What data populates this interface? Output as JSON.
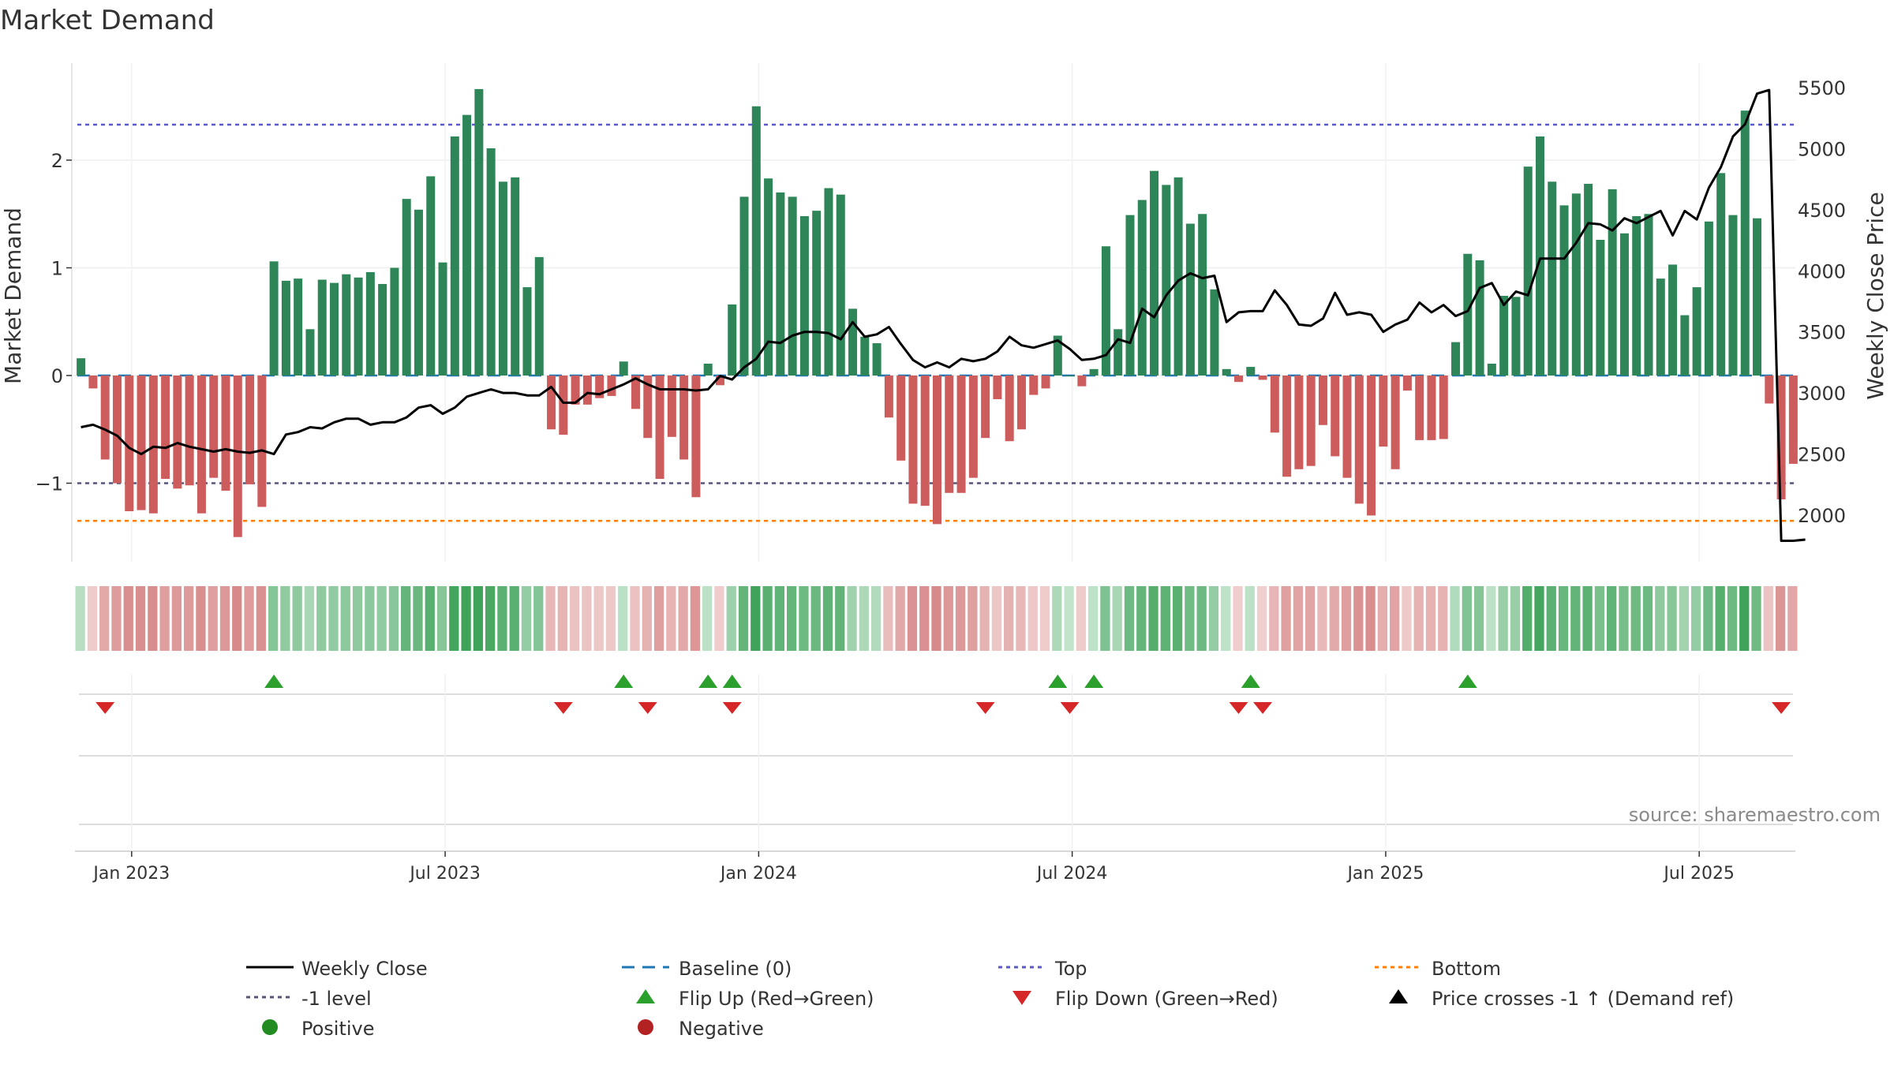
{
  "chart_data": {
    "type": "bar",
    "title": "Market Demand",
    "ylabel_left": "Market Demand",
    "ylabel_right": "Weekly Close Price",
    "source": "source: sharemaestro.com",
    "x_ticks": [
      "Jan 2023",
      "Jul 2023",
      "Jan 2024",
      "Jul 2024",
      "Jan 2025",
      "Jul 2025"
    ],
    "y_left_ticks": [
      "2",
      "1",
      "0",
      "−1"
    ],
    "y_left_tick_values": [
      2,
      1,
      0,
      -1
    ],
    "y_right_ticks": [
      "5500",
      "5000",
      "4500",
      "4000",
      "3500",
      "3000",
      "2500",
      "2000"
    ],
    "y_right_tick_values": [
      5500,
      5000,
      4500,
      4000,
      3500,
      3000,
      2500,
      2000
    ],
    "ylim_left": [
      -1.7,
      2.9
    ],
    "ylim_right": [
      1575,
      5680
    ],
    "levels": {
      "top": 2.33,
      "minus_one": -1.0,
      "bottom": -1.35,
      "baseline": 0
    },
    "colors": {
      "positive_bar": "#2e8557",
      "negative_bar": "#cd5c5c",
      "price_line": "#000000",
      "baseline": "#1f77b4",
      "top": "#5a5ac8",
      "minus_one": "#555577",
      "bottom": "#ff7f0e",
      "flip_up": "#2ca02c",
      "flip_down": "#d62728"
    },
    "demand": [
      0.16,
      -0.12,
      -0.78,
      -1.0,
      -1.26,
      -1.25,
      -1.28,
      -0.96,
      -1.05,
      -1.02,
      -1.28,
      -0.95,
      -1.07,
      -1.5,
      -1.01,
      -1.22,
      1.06,
      0.88,
      0.9,
      0.43,
      0.89,
      0.86,
      0.94,
      0.91,
      0.96,
      0.85,
      1.0,
      1.64,
      1.54,
      1.85,
      1.05,
      2.22,
      2.42,
      2.66,
      2.11,
      1.8,
      1.84,
      0.82,
      1.1,
      -0.5,
      -0.55,
      -0.27,
      -0.27,
      -0.21,
      -0.19,
      0.13,
      -0.31,
      -0.58,
      -0.96,
      -0.57,
      -0.78,
      -1.13,
      0.11,
      -0.09,
      0.66,
      1.66,
      2.5,
      1.83,
      1.7,
      1.66,
      1.48,
      1.53,
      1.74,
      1.68,
      0.62,
      0.36,
      0.3,
      -0.39,
      -0.79,
      -1.19,
      -1.21,
      -1.38,
      -1.09,
      -1.09,
      -0.95,
      -0.58,
      -0.22,
      -0.61,
      -0.5,
      -0.18,
      -0.12,
      0.37,
      0.0,
      -0.1,
      0.06,
      1.2,
      0.43,
      1.49,
      1.63,
      1.9,
      1.77,
      1.84,
      1.41,
      1.5,
      0.8,
      0.06,
      -0.06,
      0.08,
      -0.04,
      -0.53,
      -0.94,
      -0.87,
      -0.84,
      -0.46,
      -0.75,
      -0.95,
      -1.19,
      -1.3,
      -0.66,
      -0.87,
      -0.14,
      -0.6,
      -0.6,
      -0.59,
      0.31,
      1.13,
      1.07,
      0.11,
      0.74,
      0.73,
      1.94,
      2.22,
      1.8,
      1.58,
      1.69,
      1.78,
      1.26,
      1.73,
      1.32,
      1.48,
      1.5,
      0.9,
      1.03,
      0.56,
      0.82,
      1.43,
      1.88,
      1.49,
      2.46,
      1.46,
      -0.26,
      -1.15,
      -0.82
    ],
    "price": [
      2720,
      2740,
      2700,
      2650,
      2550,
      2500,
      2560,
      2550,
      2590,
      2560,
      2540,
      2520,
      2540,
      2520,
      2510,
      2530,
      2500,
      2660,
      2680,
      2720,
      2710,
      2760,
      2790,
      2790,
      2740,
      2760,
      2760,
      2800,
      2880,
      2900,
      2830,
      2880,
      2970,
      3000,
      3030,
      3000,
      3000,
      2980,
      2980,
      3050,
      2920,
      2920,
      3000,
      2990,
      3030,
      3070,
      3120,
      3070,
      3030,
      3030,
      3030,
      3020,
      3030,
      3140,
      3110,
      3210,
      3280,
      3420,
      3410,
      3470,
      3500,
      3500,
      3490,
      3440,
      3580,
      3460,
      3480,
      3540,
      3400,
      3270,
      3210,
      3250,
      3210,
      3280,
      3260,
      3280,
      3340,
      3460,
      3390,
      3370,
      3400,
      3430,
      3360,
      3270,
      3280,
      3310,
      3440,
      3410,
      3690,
      3620,
      3800,
      3920,
      3980,
      3940,
      3960,
      3580,
      3660,
      3670,
      3670,
      3840,
      3720,
      3560,
      3550,
      3610,
      3820,
      3640,
      3660,
      3640,
      3500,
      3560,
      3600,
      3740,
      3660,
      3720,
      3630,
      3670,
      3860,
      3900,
      3720,
      3830,
      3800,
      4100,
      4100,
      4100,
      4230,
      4390,
      4380,
      4330,
      4430,
      4390,
      4440,
      4490,
      4290,
      4490,
      4420,
      4680,
      4850,
      5100,
      5200,
      5450,
      5480,
      1790,
      1790,
      1800
    ],
    "flip_up_index": [
      16,
      45,
      52,
      54,
      81,
      84,
      97,
      115
    ],
    "flip_down_index": [
      2,
      40,
      47,
      54,
      75,
      82,
      96,
      98,
      141
    ],
    "legend": {
      "weekly_close": "Weekly Close",
      "baseline": "Baseline (0)",
      "top": "Top",
      "bottom": "Bottom",
      "minus_one": "-1 level",
      "flip_up": "Flip Up (Red→Green)",
      "flip_down": "Flip Down (Green→Red)",
      "price_cross": "Price crosses -1 ↑ (Demand ref)",
      "positive": "Positive",
      "negative": "Negative"
    }
  }
}
